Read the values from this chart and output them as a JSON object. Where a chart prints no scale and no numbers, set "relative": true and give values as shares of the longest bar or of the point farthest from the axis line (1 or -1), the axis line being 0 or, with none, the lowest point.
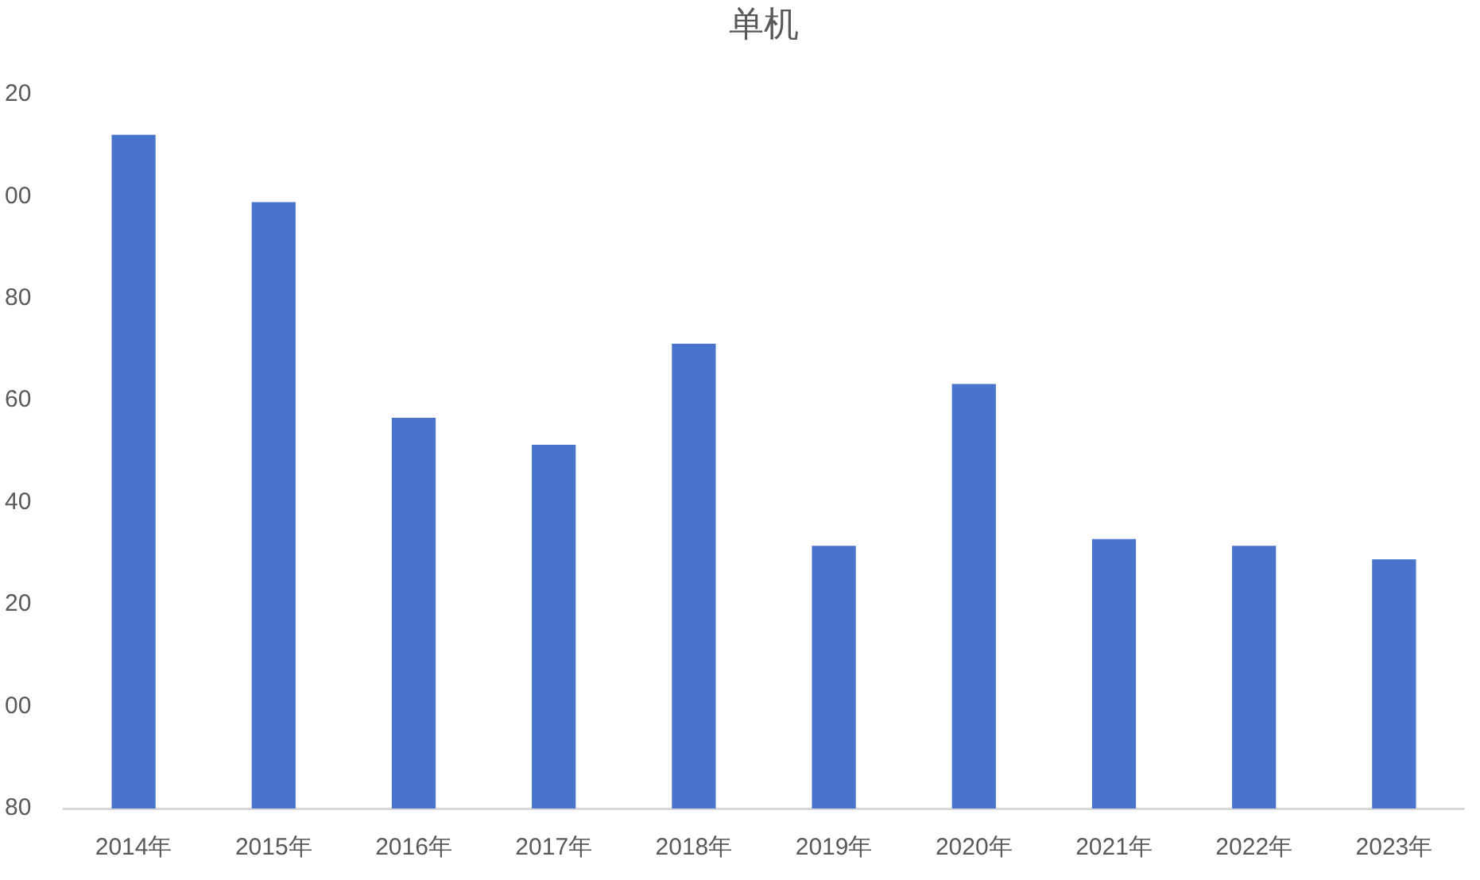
{
  "chart_data": {
    "type": "bar",
    "title": "单机",
    "categories": [
      "2014年",
      "2015年",
      "2016年",
      "2017年",
      "2018年",
      "2019年",
      "2020年",
      "2021年",
      "2022年",
      "2023年"
    ],
    "values": [
      1,
      0.9,
      0.58,
      0.54,
      0.69,
      0.39,
      0.63,
      0.4,
      0.39,
      0.37
    ],
    "relative": true,
    "color": "#4874cb",
    "annotations": [
      "20",
      "00",
      "80",
      "60",
      "40",
      "20",
      "00",
      "80"
    ]
  }
}
